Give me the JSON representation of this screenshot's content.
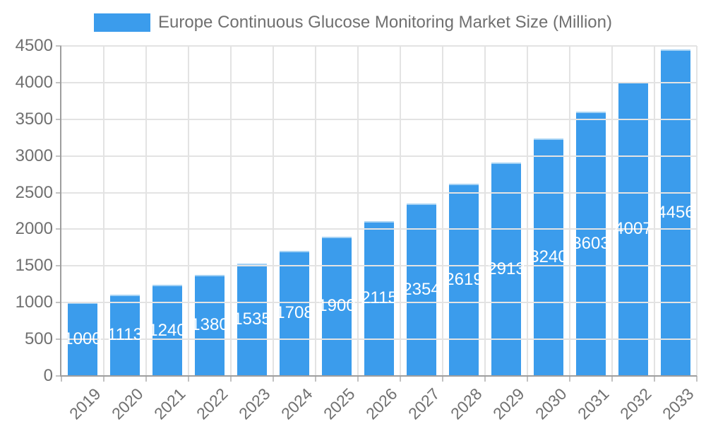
{
  "chart_data": {
    "type": "bar",
    "title": "Europe Continuous Glucose Monitoring Market Size (Million)",
    "legend": {
      "position": "top",
      "entries": [
        {
          "label": "Europe Continuous Glucose Monitoring Market Size (Million)",
          "color": "#3B9CEC"
        }
      ]
    },
    "categories": [
      "2019",
      "2020",
      "2021",
      "2022",
      "2023",
      "2024",
      "2025",
      "2026",
      "2027",
      "2028",
      "2029",
      "2030",
      "2031",
      "2032",
      "2033"
    ],
    "values": [
      1000,
      1113,
      1240,
      1380,
      1535,
      1708,
      1900,
      2115,
      2354,
      2619,
      2913,
      3240,
      3603,
      4007,
      4456
    ],
    "xlabel": "",
    "ylabel": "",
    "ylim": [
      0,
      4500
    ],
    "yticks": [
      0,
      500,
      1000,
      1500,
      2000,
      2500,
      3000,
      3500,
      4000,
      4500
    ],
    "grid": true,
    "value_labels": "inside-center",
    "x_label_rotation_deg": -45,
    "colors": {
      "bar_fill": "#3B9CEC",
      "bar_border_top": "#A5D2F4",
      "value_label": "#FFFFFF",
      "grid_line": "#E3E3E3",
      "axis_line": "#9E9E9E",
      "tick_mark": "#C2C2C2",
      "axis_text": "#707070"
    }
  }
}
